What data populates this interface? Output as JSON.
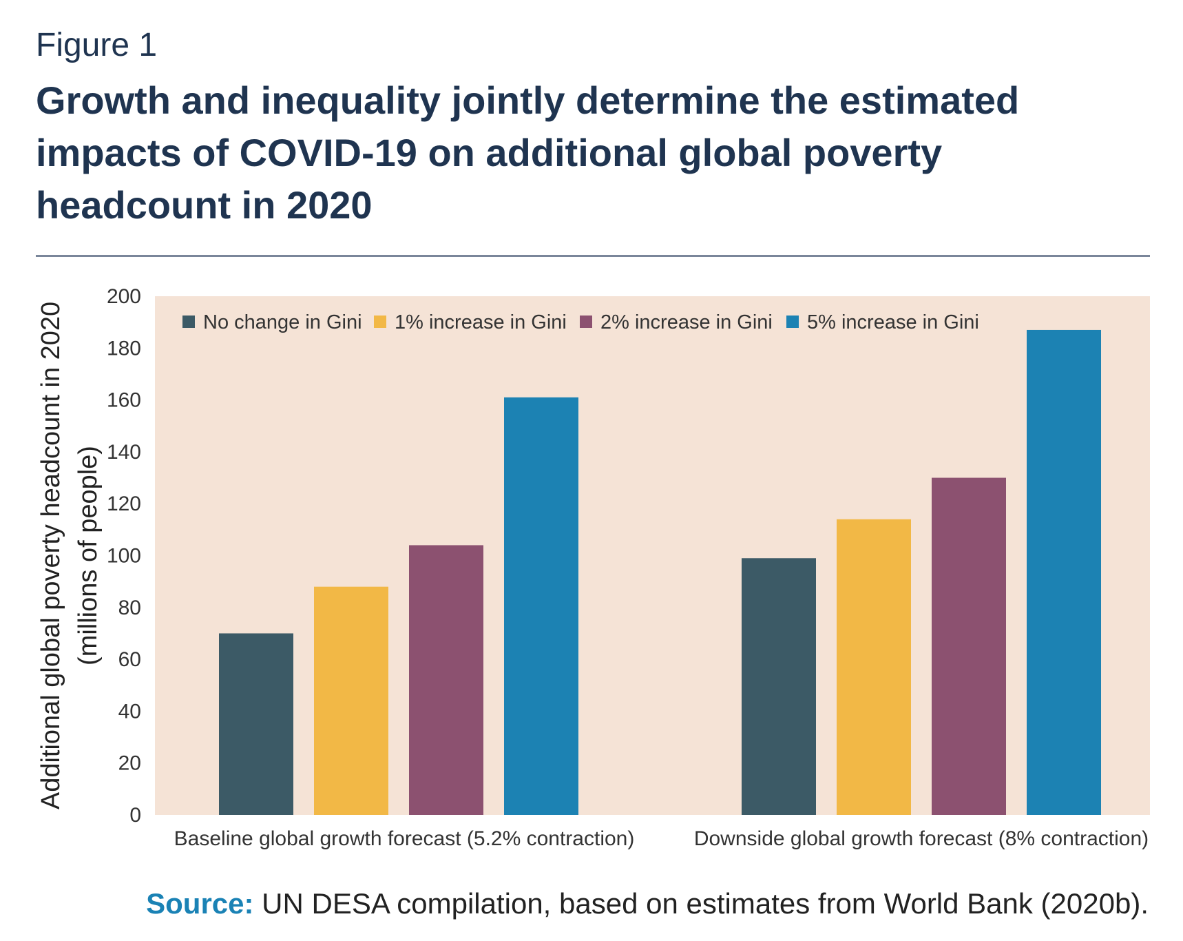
{
  "figure_label": "Figure 1",
  "title_lines": [
    "Growth and inequality jointly determine the estimated",
    "impacts of COVID-19 on additional global poverty",
    "headcount in 2020"
  ],
  "source": {
    "label": "Source:",
    "text": " UN DESA compilation, based on estimates from World Bank (2020b)."
  },
  "colors": {
    "plot_bg": "#f5e3d6",
    "title": "#1f3450",
    "rule": "#7a869a",
    "source_label": "#1a82b5"
  },
  "chart_data": {
    "type": "bar",
    "categories": [
      "Baseline global growth forecast (5.2% contraction)",
      "Downside global growth forecast (8% contraction)"
    ],
    "series": [
      {
        "name": "No change in Gini",
        "color": "#3c5a66",
        "values": [
          70,
          99
        ]
      },
      {
        "name": "1% increase in Gini",
        "color": "#f2b846",
        "values": [
          88,
          114
        ]
      },
      {
        "name": "2% increase in Gini",
        "color": "#8c5170",
        "values": [
          104,
          130
        ]
      },
      {
        "name": "5% increase in Gini",
        "color": "#1c82b3",
        "values": [
          161,
          187
        ]
      }
    ],
    "ylabel_lines": [
      "Additional global poverty headcount in 2020",
      "(millions of people)"
    ],
    "xlabel": "",
    "ylim": [
      0,
      200
    ],
    "yticks": [
      0,
      20,
      40,
      60,
      80,
      100,
      120,
      140,
      160,
      180,
      200
    ],
    "grid": false,
    "legend_position": "top-left"
  }
}
